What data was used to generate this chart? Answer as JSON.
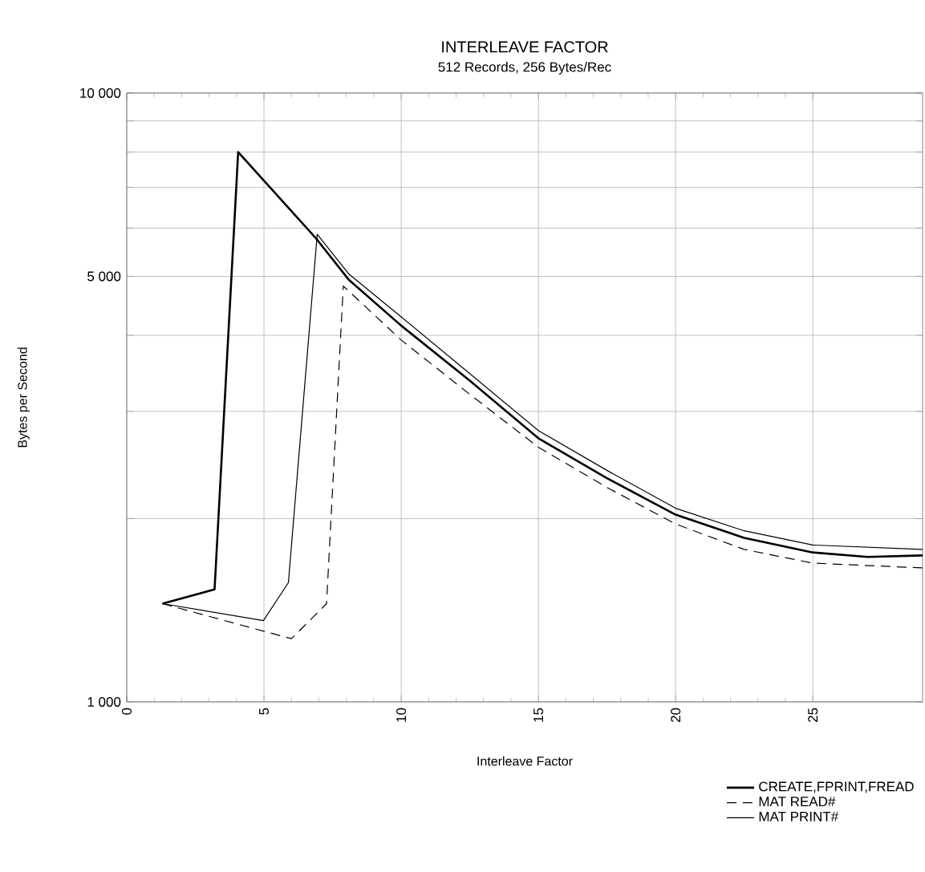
{
  "chart_data": {
    "type": "line",
    "title": "INTERLEAVE FACTOR",
    "subtitle": "512 Records, 256 Bytes/Rec",
    "xlabel": "Interleave Factor",
    "ylabel": "Bytes per Second",
    "log": "y",
    "grid": true,
    "legend": "bottom right",
    "marker": "none",
    "xlim": [
      0,
      29
    ],
    "xticks": [
      0,
      5,
      10,
      15,
      20,
      25
    ],
    "ylim": [
      1000,
      10000
    ],
    "yticks": [
      {
        "value": 1000,
        "label": "1 000"
      },
      {
        "value": 2000,
        "label": null
      },
      {
        "value": 3000,
        "label": null
      },
      {
        "value": 4000,
        "label": null
      },
      {
        "value": 5000,
        "label": "5 000"
      },
      {
        "value": 6000,
        "label": null
      },
      {
        "value": 7000,
        "label": null
      },
      {
        "value": 8000,
        "label": null
      },
      {
        "value": 9000,
        "label": null
      },
      {
        "value": 10000,
        "label": "10 000"
      }
    ],
    "series": [
      {
        "name": "CREATE,FPRINT,FREAD",
        "color": "#000000",
        "line_style": "solid",
        "x": [
          1.3,
          3.2,
          4.06,
          6.9,
          8.1,
          10,
          12.5,
          15,
          17.5,
          20,
          22.5,
          25,
          27,
          29
        ],
        "values": [
          1450,
          1530,
          8000,
          5770,
          4930,
          4150,
          3370,
          2710,
          2330,
          2030,
          1860,
          1760,
          1730,
          1740
        ]
      },
      {
        "name": "MAT READ#",
        "color": "#000000",
        "line_style": "dashed",
        "x": [
          1.3,
          6.0,
          7.28,
          7.89,
          10,
          12.5,
          15,
          17.5,
          20,
          22.5,
          25,
          29
        ],
        "values": [
          1450,
          1270,
          1450,
          4820,
          3930,
          3200,
          2620,
          2250,
          1960,
          1780,
          1690,
          1660
        ]
      },
      {
        "name": "MAT PRINT#",
        "color": "#000000",
        "line_style": "solid",
        "x": [
          1.3,
          4.98,
          5.89,
          6.94,
          8.1,
          10,
          12.5,
          15,
          17.5,
          20,
          22.5,
          25,
          29
        ],
        "values": [
          1450,
          1360,
          1570,
          5860,
          5040,
          4290,
          3460,
          2790,
          2400,
          2080,
          1910,
          1810,
          1780
        ]
      }
    ]
  }
}
